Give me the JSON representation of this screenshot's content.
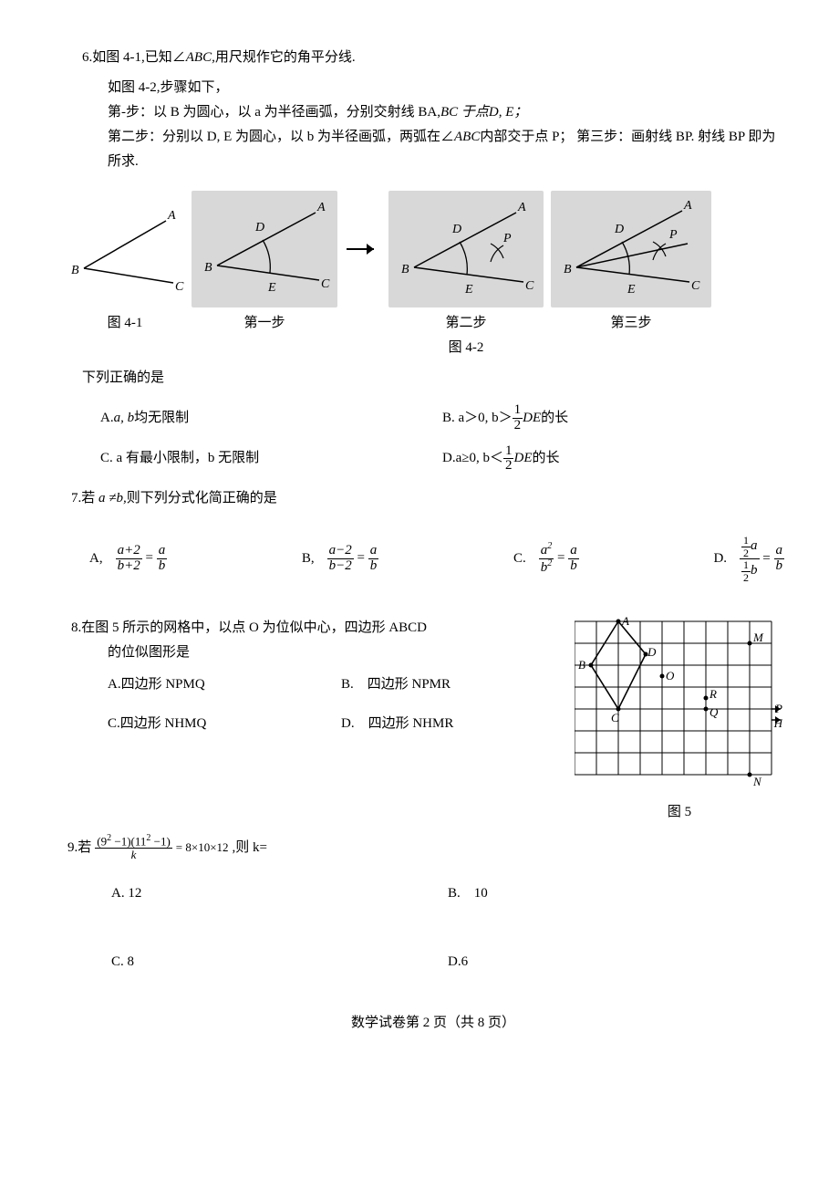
{
  "q6": {
    "title_prefix": "6.如图 4-1,已知∠",
    "title_mid": "ABC,",
    "title_suf": "用尺规作它的角平分线.",
    "line2": "如图 4-2,步骤如下，",
    "step1_a": "第-步：以 B 为圆心，以 a 为半径画弧，分别交射线 BA,",
    "step1_b": "BC 于点D,  E；",
    "step2_a": "第二步：分别以 D, E 为圆心，以 b 为半径画弧，两弧在∠",
    "step2_b": "ABC",
    "step2_c": "内部交于点 P；  第三步：画射线 BP. 射线 BP 即为所求.",
    "labels": {
      "fig41": "图 4-1",
      "s1": "第一步",
      "s2": "第二步",
      "fig42": "图 4-2",
      "s3": "第三步"
    },
    "stmt": "下列正确的是",
    "optA_1": "A. ",
    "optA_2": "a,   b",
    "optA_3": "均无限制",
    "optB_1": "B. a＞0,   b＞",
    "optB_2": "DE",
    "optB_3": "的长",
    "optC": "C. a 有最小限制，b 无限制",
    "optD_1": "D.a≥0,   b＜",
    "optD_2": "DE",
    "optD_3": "的长"
  },
  "q7": {
    "title_a": "7.若 ",
    "title_b": "a  ≠b,",
    "title_c": "则下列分式化简正确的是",
    "A": "A,",
    "B": "B,",
    "C": "C.",
    "D": "D.",
    "a_num": "a+2",
    "a_den": "b+2",
    "rhs_num": "a",
    "rhs_den": "b",
    "b_num": "a−2",
    "b_den": "b−2",
    "c_num": "a",
    "c_den": "b"
  },
  "q8": {
    "title": "8.在图 5 所示的网格中，以点 O 为位似中心，四边形 ABCD",
    "title2": "的位似图形是",
    "A": "A.四边形 NPMQ",
    "B": "B.　四边形 NPMR",
    "C": "C.四边形 NHMQ",
    "D": "D.　四边形 NHMR",
    "fig": "图 5",
    "grid": {
      "rows": 7,
      "cols": 9,
      "stroke": "#000",
      "cell": 24
    }
  },
  "q9": {
    "title_a": "9.若  ",
    "title_b": ",则 k=",
    "A": "A. 12",
    "B": "B.　10",
    "C": "C. 8",
    "D": "D.6"
  },
  "footer": "数学试卷第 2 页（共 8 页）",
  "half": {
    "n": "1",
    "d": "2"
  }
}
